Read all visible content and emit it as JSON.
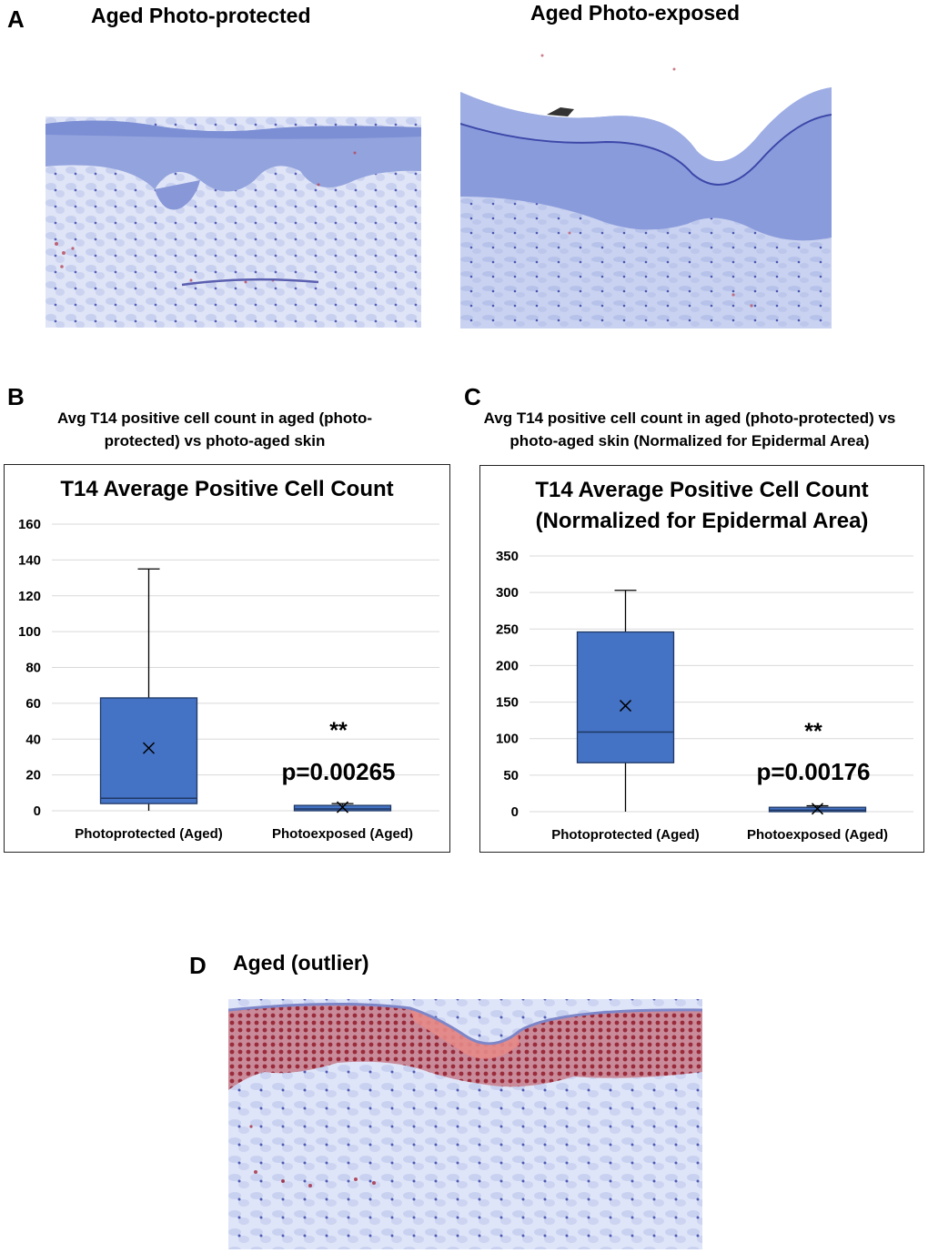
{
  "panel_a": {
    "letter": "A",
    "left_title": "Aged Photo-protected",
    "right_title": "Aged Photo-exposed"
  },
  "panel_b": {
    "letter": "B",
    "caption_line1": "Avg T14 positive cell count in aged (photo-",
    "caption_line2": "protected) vs photo-aged skin"
  },
  "panel_c": {
    "letter": "C",
    "caption_line1": "Avg T14 positive cell count in aged (photo-protected) vs",
    "caption_line2": "photo-aged skin (Normalized for Epidermal Area)"
  },
  "panel_d": {
    "letter": "D",
    "title": "Aged (outlier)"
  },
  "colors": {
    "box_fill": "#4472c4",
    "box_stroke": "#1f3864",
    "grid": "#d9d9d9",
    "tissue_base": "#cdd6f2",
    "epidermis": "#8fa0dc",
    "stain_red": "#c0504d"
  },
  "chart_data": [
    {
      "type": "box",
      "title": "T14 Average Positive Cell Count",
      "categories": [
        "Photoprotected (Aged)",
        "Photoexposed (Aged)"
      ],
      "ylim": [
        0,
        160
      ],
      "yticks": [
        0,
        20,
        40,
        60,
        80,
        100,
        120,
        140,
        160
      ],
      "grid": true,
      "boxes": [
        {
          "min": 0,
          "q1": 4,
          "median": 7,
          "q3": 63,
          "max": 135,
          "mean": 35
        },
        {
          "min": 0,
          "q1": 0,
          "median": 1,
          "q3": 3,
          "max": 4,
          "mean": 2
        }
      ],
      "significance": "**",
      "p_value": "p=0.00265"
    },
    {
      "type": "box",
      "title_line1": "T14 Average Positive Cell Count",
      "title_line2": "(Normalized for Epidermal Area)",
      "categories": [
        "Photoprotected (Aged)",
        "Photoexposed (Aged)"
      ],
      "ylim": [
        0,
        350
      ],
      "yticks": [
        0,
        50,
        100,
        150,
        200,
        250,
        300,
        350
      ],
      "grid": true,
      "boxes": [
        {
          "min": 0,
          "q1": 67,
          "median": 109,
          "q3": 246,
          "max": 303,
          "mean": 145
        },
        {
          "min": 0,
          "q1": 0,
          "median": 2,
          "q3": 6,
          "max": 8,
          "mean": 4
        }
      ],
      "significance": "**",
      "p_value": "p=0.00176"
    }
  ]
}
